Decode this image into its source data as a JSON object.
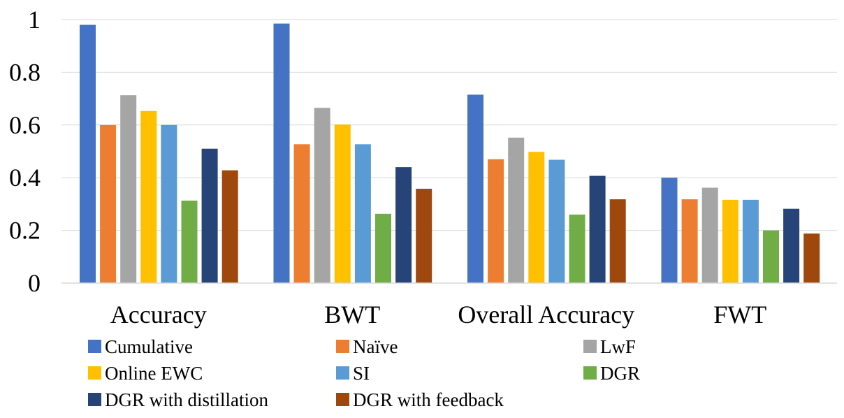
{
  "chart_data": {
    "type": "bar",
    "title": "",
    "xlabel": "",
    "ylabel": "",
    "ylim": [
      0,
      1
    ],
    "yticks": [
      0,
      0.2,
      0.4,
      0.6,
      0.8,
      1
    ],
    "ytick_labels": [
      "0",
      "0.2",
      "0.4",
      "0.6",
      "0.8",
      "1"
    ],
    "grid": true,
    "legend_position": "bottom",
    "categories": [
      "Accuracy",
      "BWT",
      "Overall Accuracy",
      "FWT"
    ],
    "series": [
      {
        "name": "Cumulative",
        "color": "#4472C4",
        "values": [
          0.98,
          0.985,
          0.715,
          0.4
        ]
      },
      {
        "name": "Naïve",
        "color": "#ED7D31",
        "values": [
          0.6,
          0.527,
          0.47,
          0.318
        ]
      },
      {
        "name": "LwF",
        "color": "#A5A5A5",
        "values": [
          0.713,
          0.665,
          0.552,
          0.362
        ]
      },
      {
        "name": "Online EWC",
        "color": "#FFC000",
        "values": [
          0.653,
          0.602,
          0.498,
          0.316
        ]
      },
      {
        "name": "SI",
        "color": "#5B9BD5",
        "values": [
          0.6,
          0.527,
          0.468,
          0.316
        ]
      },
      {
        "name": "DGR",
        "color": "#70AD47",
        "values": [
          0.313,
          0.263,
          0.26,
          0.2
        ]
      },
      {
        "name": "DGR with distillation",
        "color": "#264478",
        "values": [
          0.51,
          0.44,
          0.407,
          0.282
        ]
      },
      {
        "name": "DGR with feedback",
        "color": "#9E480E",
        "values": [
          0.428,
          0.358,
          0.318,
          0.188
        ]
      }
    ]
  }
}
